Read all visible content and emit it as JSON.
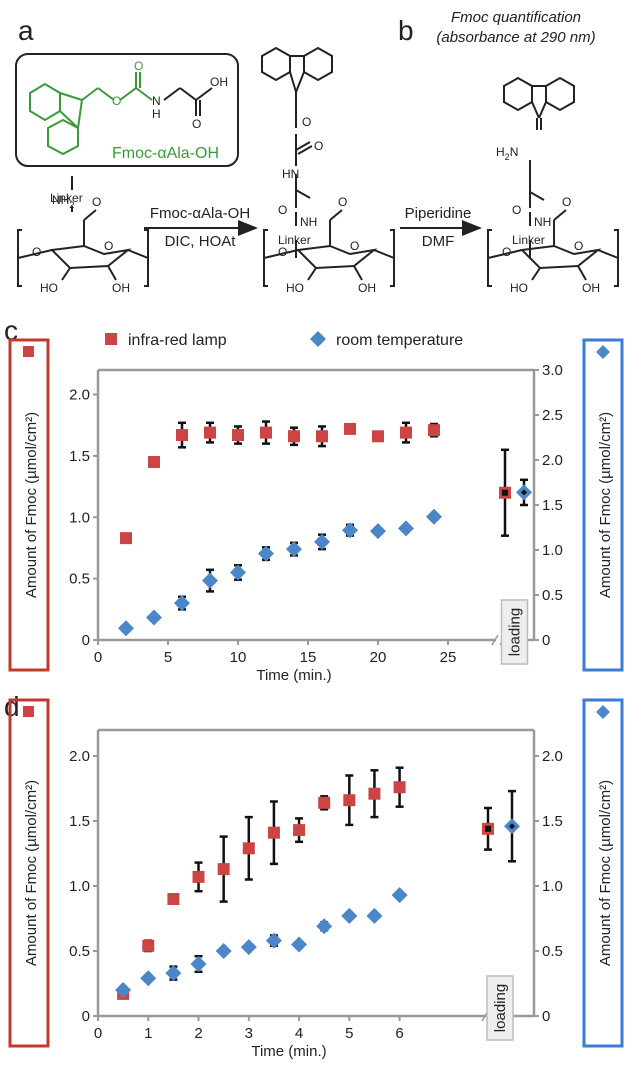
{
  "panels": {
    "a": "a",
    "b": "b",
    "c": "c",
    "d": "d"
  },
  "scheme": {
    "reagent_box_label_prefix": "Fmoc-",
    "reagent_box_label_alpha": "α",
    "reagent_box_label_suffix": "Ala-OH",
    "oh_label": "OH",
    "nh_label": "N",
    "h_label": "H",
    "step1_reagent": "Fmoc-αAla-OH",
    "step1_conditions": "DIC, HOAt",
    "step2_reagent": "Piperidine",
    "step2_conditions": "DMF",
    "b_title_line1": "Fmoc quantification",
    "b_title_line2": "(absorbance at 290 nm)",
    "nh2": "NH",
    "nh2_sub": "2",
    "h2n": "H",
    "h2n_sub": "2",
    "h2n_n": "N",
    "linker": "Linker",
    "o": "O",
    "ho": "HO",
    "oh": "OH",
    "hn": "HN",
    "nh": "NH"
  },
  "colors": {
    "red": "#cc4444",
    "blue": "#4a86c8",
    "green": "#3a9a3a",
    "axis": "#999999",
    "box_red": "#c0392b",
    "box_blue": "#3a7bd5"
  },
  "chart_data": [
    {
      "type": "scatter",
      "panel": "c",
      "xlabel": "Time (min.)",
      "ylabel_left": "Amount of Fmoc (µmol/cm²)",
      "ylabel_right": "Amount of Fmoc (µmol/cm²)",
      "xlim": [
        0,
        28
      ],
      "xticks": [
        0,
        5,
        10,
        15,
        20,
        25
      ],
      "ylim_left": [
        0,
        2.2
      ],
      "yticks_left": [
        "0",
        "0.5",
        "1.0",
        "1.5",
        "2.0"
      ],
      "ylim_right": [
        0,
        3.0
      ],
      "yticks_right": [
        "0",
        "0.5",
        "1.0",
        "1.5",
        "2.0",
        "2.5",
        "3.0"
      ],
      "loading_label": "loading",
      "series": [
        {
          "name": "infra-red lamp",
          "axis": "left",
          "marker": "square",
          "x": [
            2,
            4,
            6,
            8,
            10,
            12,
            14,
            16,
            18,
            20,
            22,
            24
          ],
          "y": [
            0.83,
            1.45,
            1.67,
            1.69,
            1.67,
            1.69,
            1.66,
            1.66,
            1.72,
            1.66,
            1.69,
            1.71
          ],
          "err": [
            0,
            0,
            0.1,
            0.08,
            0.07,
            0.09,
            0.07,
            0.08,
            0.03,
            0.03,
            0.08,
            0.05
          ],
          "loading": {
            "y": 1.2,
            "err": 0.35
          }
        },
        {
          "name": "room temperature",
          "axis": "right",
          "marker": "diamond",
          "x": [
            2,
            4,
            6,
            8,
            10,
            12,
            14,
            16,
            18,
            20,
            22,
            24
          ],
          "y": [
            0.13,
            0.25,
            0.41,
            0.66,
            0.75,
            0.96,
            1.01,
            1.09,
            1.22,
            1.21,
            1.24,
            1.37
          ],
          "err": [
            0,
            0,
            0.07,
            0.12,
            0.08,
            0.07,
            0.07,
            0.08,
            0.06,
            0.03,
            0.03,
            0.03
          ],
          "loading": {
            "y": 1.64,
            "err": 0.14
          }
        }
      ]
    },
    {
      "type": "scatter",
      "panel": "d",
      "xlabel": "Time (min.)",
      "ylabel_left": "Amount of Fmoc (µmol/cm²)",
      "ylabel_right": "Amount of Fmoc (µmol/cm²)",
      "xlim": [
        0,
        7.6
      ],
      "xticks": [
        0,
        1,
        2,
        3,
        4,
        5,
        6
      ],
      "ylim_left": [
        0,
        2.2
      ],
      "yticks_left": [
        "0",
        "0.5",
        "1.0",
        "1.5",
        "2.0"
      ],
      "ylim_right": [
        0,
        2.2
      ],
      "yticks_right": [
        "0",
        "0.5",
        "1.0",
        "1.5",
        "2.0"
      ],
      "loading_label": "loading",
      "series": [
        {
          "name": "infra-red lamp",
          "axis": "left",
          "marker": "square",
          "x": [
            0.5,
            1,
            1.5,
            2,
            2.5,
            3,
            3.5,
            4,
            4.5,
            5,
            5.5,
            6
          ],
          "y": [
            0.17,
            0.54,
            0.9,
            1.07,
            1.13,
            1.29,
            1.41,
            1.43,
            1.64,
            1.66,
            1.71,
            1.76
          ],
          "err": [
            0.03,
            0.04,
            0.03,
            0.11,
            0.25,
            0.24,
            0.24,
            0.09,
            0.05,
            0.19,
            0.18,
            0.15
          ],
          "loading": {
            "y": 1.44,
            "err": 0.16
          }
        },
        {
          "name": "room temperature",
          "axis": "right",
          "marker": "diamond",
          "x": [
            0.5,
            1,
            1.5,
            2,
            2.5,
            3,
            3.5,
            4,
            4.5,
            5,
            5.5,
            6
          ],
          "y": [
            0.2,
            0.29,
            0.33,
            0.4,
            0.5,
            0.53,
            0.58,
            0.55,
            0.69,
            0.77,
            0.77,
            0.93
          ],
          "err": [
            0.02,
            0.02,
            0.05,
            0.06,
            0.02,
            0.02,
            0.04,
            0.02,
            0.03,
            0.02,
            0.02,
            0.02
          ],
          "loading": {
            "y": 1.46,
            "err": 0.27
          }
        }
      ]
    }
  ]
}
